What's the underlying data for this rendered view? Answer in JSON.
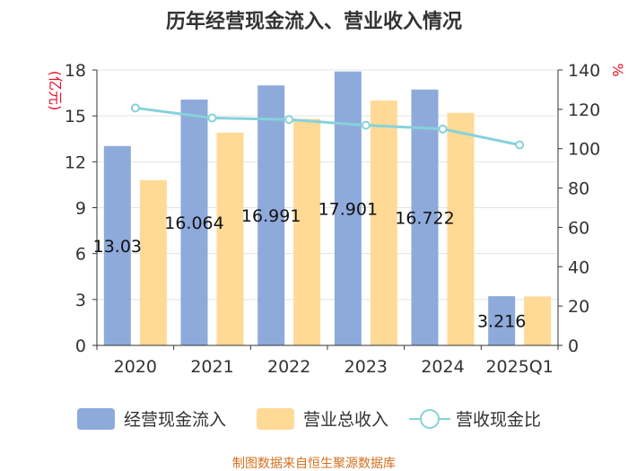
{
  "chart_data": {
    "type": "bar",
    "title": "历年经营现金流入、营业收入情况",
    "categories": [
      "2020",
      "2021",
      "2022",
      "2023",
      "2024",
      "2025Q1"
    ],
    "series": [
      {
        "name": "经营现金流入",
        "type": "bar",
        "axis": "left",
        "color": "#8eaadb",
        "values": [
          13.03,
          16.064,
          16.991,
          17.901,
          16.722,
          3.216
        ],
        "labels": [
          "13.03",
          "16.064",
          "16.991",
          "17.901",
          "16.722",
          "3.216"
        ]
      },
      {
        "name": "营业总收入",
        "type": "bar",
        "axis": "left",
        "color": "#ffd996",
        "values": [
          10.8,
          13.9,
          14.8,
          16.0,
          15.2,
          3.2
        ]
      },
      {
        "name": "营收现金比",
        "type": "line",
        "axis": "right",
        "color": "#86d2da",
        "values": [
          120.7,
          115.6,
          114.8,
          111.9,
          110.0,
          101.9
        ]
      }
    ],
    "y_left": {
      "unit": "(亿元)",
      "ylim": [
        0,
        18
      ],
      "ticks": [
        0,
        3,
        6,
        9,
        12,
        15,
        18
      ]
    },
    "y_right": {
      "unit": "%",
      "ylim": [
        0,
        140
      ],
      "ticks": [
        0,
        20,
        40,
        60,
        80,
        100,
        120,
        140
      ]
    },
    "grid": true,
    "legend_position": "bottom",
    "source": "制图数据来自恒生聚源数据库"
  }
}
